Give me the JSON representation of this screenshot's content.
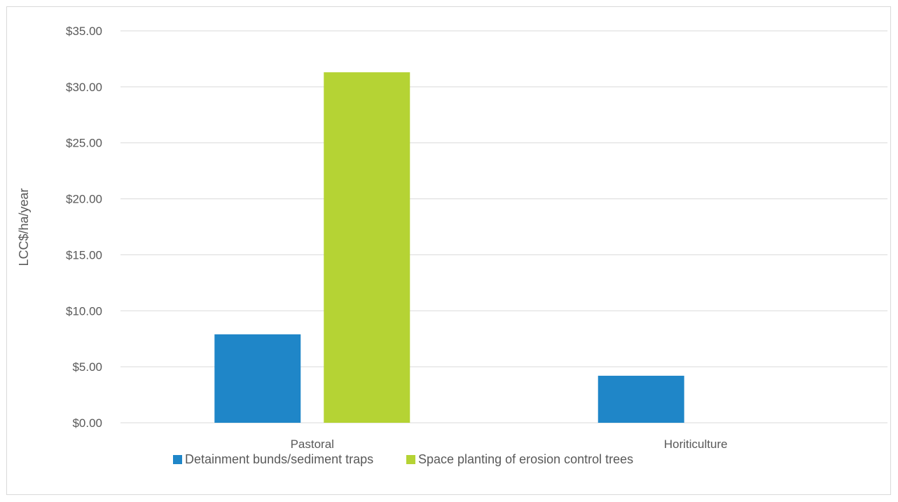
{
  "chart_data": {
    "type": "bar",
    "title": "",
    "xlabel": "",
    "ylabel": "LCC$/ha/year",
    "categories": [
      "Pastoral",
      "Horiticulture"
    ],
    "series": [
      {
        "name": "Detainment bunds/sediment traps",
        "values": [
          7.9,
          4.2
        ],
        "color": "#1F86C8"
      },
      {
        "name": "Space planting of erosion control trees",
        "values": [
          31.3,
          0
        ],
        "color": "#B5D334"
      }
    ],
    "ylim": [
      0,
      35
    ],
    "ytick_values": [
      0,
      5,
      10,
      15,
      20,
      25,
      30,
      35
    ],
    "ytick_labels": [
      "$0.00",
      "$5.00",
      "$10.00",
      "$15.00",
      "$20.00",
      "$25.00",
      "$30.00",
      "$35.00"
    ],
    "grid": true,
    "legend_position": "bottom"
  }
}
